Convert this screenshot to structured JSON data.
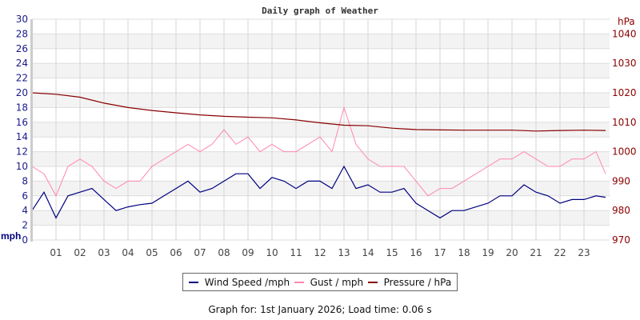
{
  "chart_data": {
    "type": "line",
    "title": "Daily graph of Weather",
    "x_ticks": [
      "01",
      "02",
      "03",
      "04",
      "05",
      "06",
      "07",
      "08",
      "09",
      "10",
      "11",
      "12",
      "13",
      "14",
      "15",
      "16",
      "17",
      "18",
      "19",
      "20",
      "21",
      "22",
      "23"
    ],
    "xlim": [
      0,
      24
    ],
    "left_axis": {
      "label": "mph",
      "ylim": [
        0,
        30
      ],
      "ticks": [
        "0",
        "2",
        "4",
        "6",
        "8",
        "10",
        "12",
        "14",
        "16",
        "18",
        "20",
        "22",
        "24",
        "26",
        "28",
        "30"
      ]
    },
    "right_axis": {
      "label": "hPa",
      "ylim": [
        970,
        1045
      ],
      "ticks": [
        "970",
        "980",
        "990",
        "1000",
        "1010",
        "1020",
        "1030",
        "1040"
      ]
    },
    "grid": true,
    "legend_placement": "bottom",
    "series": [
      {
        "name": "Wind Speed /mph",
        "axis": "left",
        "color": "#000080",
        "x": [
          0,
          0.5,
          1,
          1.5,
          2,
          2.5,
          3,
          3.5,
          4,
          4.5,
          5,
          5.5,
          6,
          6.5,
          7,
          7.5,
          8,
          8.5,
          9,
          9.5,
          10,
          10.5,
          11,
          11.5,
          12,
          12.5,
          13,
          13.5,
          14,
          14.5,
          15,
          15.5,
          16,
          16.5,
          17,
          17.5,
          18,
          18.5,
          19,
          19.5,
          20,
          20.5,
          21,
          21.5,
          22,
          22.5,
          23,
          23.5,
          23.9
        ],
        "y": [
          4,
          6.5,
          3,
          6,
          6.5,
          7,
          5.5,
          4,
          4.5,
          4.8,
          5,
          6,
          7,
          8,
          6.5,
          7,
          8,
          9,
          9,
          7,
          8.5,
          8,
          7,
          8,
          8,
          7,
          10,
          7,
          7.5,
          6.5,
          6.5,
          7,
          5,
          4,
          3,
          4,
          4,
          4.5,
          5,
          6,
          6,
          7.5,
          6.5,
          6,
          5,
          5.5,
          5.5,
          6,
          5.8
        ]
      },
      {
        "name": "Gust / mph",
        "axis": "left",
        "color": "#ff88aa",
        "x": [
          0,
          0.5,
          1,
          1.5,
          2,
          2.5,
          3,
          3.5,
          4,
          4.5,
          5,
          5.5,
          6,
          6.5,
          7,
          7.5,
          8,
          8.5,
          9,
          9.5,
          10,
          10.5,
          11,
          11.5,
          12,
          12.5,
          13,
          13.5,
          14,
          14.5,
          15,
          15.5,
          16,
          16.5,
          17,
          17.5,
          18,
          18.5,
          19,
          19.5,
          20,
          20.5,
          21,
          21.5,
          22,
          22.5,
          23,
          23.5,
          23.9
        ],
        "y": [
          10,
          9,
          6,
          10,
          11,
          10,
          8,
          7,
          8,
          8,
          10,
          11,
          12,
          13,
          12,
          13,
          15,
          13,
          14,
          12,
          13,
          12,
          12,
          13,
          14,
          12,
          18,
          13,
          11,
          10,
          10,
          10,
          8,
          6,
          7,
          7,
          8,
          9,
          10,
          11,
          11,
          12,
          11,
          10,
          10,
          11,
          11,
          12,
          9
        ]
      },
      {
        "name": "Pressure / hPa",
        "axis": "right",
        "color": "#880000",
        "x": [
          0,
          1,
          2,
          3,
          4,
          5,
          6,
          7,
          8,
          9,
          10,
          11,
          12,
          13,
          14,
          15,
          16,
          17,
          18,
          19,
          20,
          21,
          22,
          23,
          23.9
        ],
        "y": [
          1020,
          1019.5,
          1018.5,
          1016.5,
          1015,
          1014,
          1013.2,
          1012.5,
          1012,
          1011.7,
          1011.5,
          1010.8,
          1009.8,
          1009,
          1008.8,
          1008,
          1007.5,
          1007.4,
          1007.3,
          1007.3,
          1007.3,
          1007,
          1007.2,
          1007.3,
          1007.2
        ]
      }
    ]
  },
  "footer": "Graph for: 1st January 2026; Load time: 0.06 s"
}
